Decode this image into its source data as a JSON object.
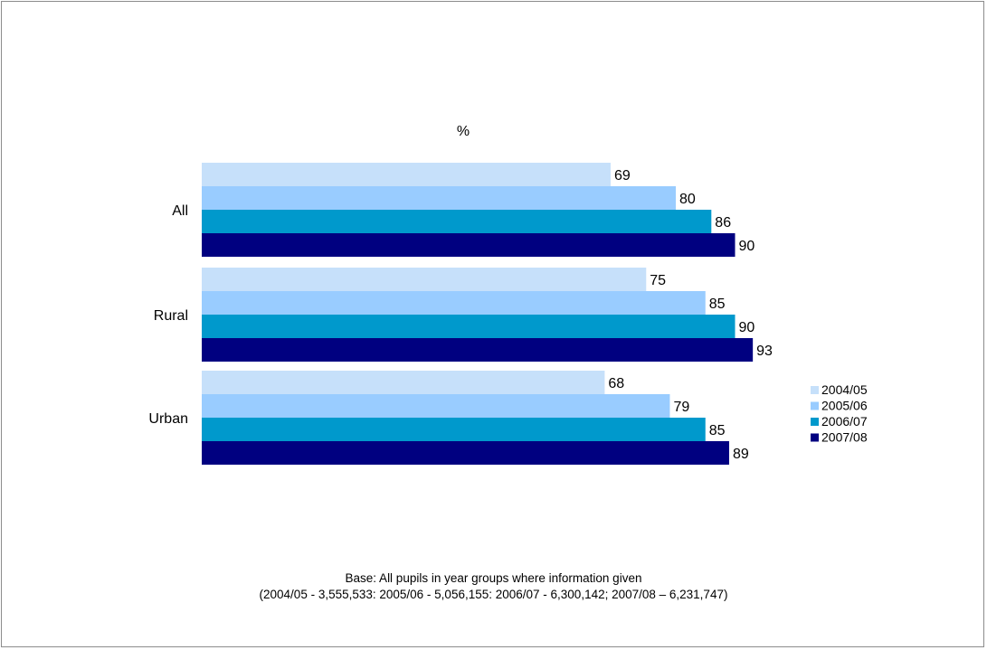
{
  "chart_data": {
    "type": "bar",
    "orientation": "horizontal",
    "unit_label": "%",
    "categories": [
      "All",
      "Rural",
      "Urban"
    ],
    "series": [
      {
        "name": "2004/05",
        "color": "#c6e0fa",
        "values": [
          69,
          75,
          68
        ]
      },
      {
        "name": "2005/06",
        "color": "#99ccff",
        "values": [
          80,
          85,
          79
        ]
      },
      {
        "name": "2006/07",
        "color": "#0099cc",
        "values": [
          86,
          90,
          85
        ]
      },
      {
        "name": "2007/08",
        "color": "#000080",
        "values": [
          90,
          93,
          89
        ]
      }
    ],
    "xlim": [
      0,
      100
    ],
    "grid": false,
    "legend_position": "right"
  },
  "footnote": {
    "line1": "Base: All pupils in year groups where information given",
    "line2": "(2004/05 - 3,555,533: 2005/06 - 5,056,155: 2006/07 - 6,300,142;  2007/08 – 6,231,747)"
  }
}
